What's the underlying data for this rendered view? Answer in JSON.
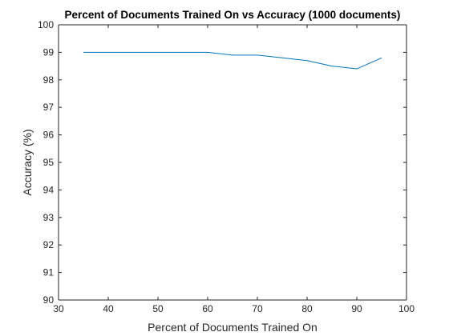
{
  "chart_data": {
    "type": "line",
    "title": "Percent of Documents Trained On vs Accuracy (1000 documents)",
    "xlabel": "Percent of Documents Trained On",
    "ylabel": "Accuracy (%)",
    "xlim": [
      30,
      100
    ],
    "ylim": [
      90,
      100
    ],
    "xticks": [
      30,
      40,
      50,
      60,
      70,
      80,
      90,
      100
    ],
    "yticks": [
      90,
      91,
      92,
      93,
      94,
      95,
      96,
      97,
      98,
      99,
      100
    ],
    "xtick_labels": [
      "30",
      "40",
      "50",
      "60",
      "70",
      "80",
      "90",
      "100"
    ],
    "ytick_labels": [
      "90",
      "91",
      "92",
      "93",
      "94",
      "95",
      "96",
      "97",
      "98",
      "99",
      "100"
    ],
    "grid": false,
    "series": [
      {
        "color": "#0072bd",
        "x": [
          35,
          40,
          45,
          50,
          55,
          60,
          65,
          70,
          75,
          80,
          85,
          90,
          95
        ],
        "y": [
          99.0,
          99.0,
          99.0,
          99.0,
          99.0,
          99.0,
          98.9,
          98.9,
          98.8,
          98.7,
          98.5,
          98.4,
          98.8
        ]
      }
    ]
  }
}
